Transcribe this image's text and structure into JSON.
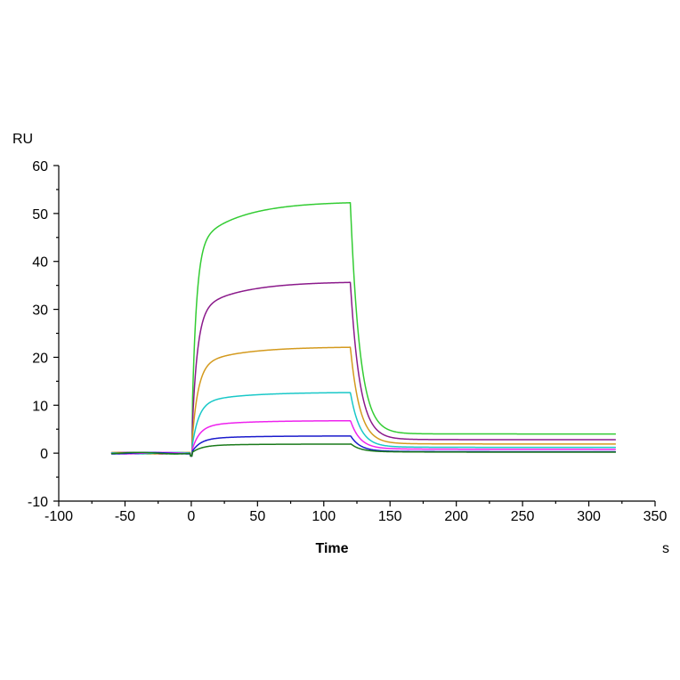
{
  "chart_data": {
    "type": "line",
    "title": "",
    "xlabel": "Time",
    "ylabel": "RU",
    "x_unit": "s",
    "xlim": [
      -100,
      350
    ],
    "ylim": [
      -10,
      60
    ],
    "x_ticks": [
      -100,
      -50,
      0,
      50,
      100,
      150,
      200,
      250,
      300,
      350
    ],
    "y_ticks": [
      -10,
      0,
      10,
      20,
      30,
      40,
      50,
      60
    ],
    "grid": false,
    "legend": "none",
    "association_start": 0,
    "dissociation_start": 120,
    "x_range": [
      -60,
      320
    ],
    "series": [
      {
        "color": "#33cc33",
        "plateau": 52.5,
        "residual": 4.0,
        "ka": 0.3,
        "drift": 0.08
      },
      {
        "color": "#8b1a8b",
        "plateau": 35.8,
        "residual": 2.8,
        "ka": 0.25,
        "drift": 0.12
      },
      {
        "color": "#d49a1e",
        "plateau": 22.2,
        "residual": 1.9,
        "ka": 0.22,
        "drift": 0.13
      },
      {
        "color": "#19c8c8",
        "plateau": 12.7,
        "residual": 1.2,
        "ka": 0.2,
        "drift": 0.14
      },
      {
        "color": "#ee22ee",
        "plateau": 6.8,
        "residual": 0.8,
        "ka": 0.18,
        "drift": 0.14
      },
      {
        "color": "#1a1acc",
        "plateau": 3.6,
        "residual": 0.3,
        "ka": 0.16,
        "drift": 0.14
      },
      {
        "color": "#1a7a1a",
        "plateau": 1.9,
        "residual": 0.2,
        "ka": 0.14,
        "drift": 0.14
      }
    ]
  }
}
